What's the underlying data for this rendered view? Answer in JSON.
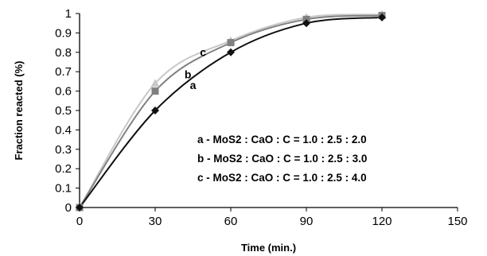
{
  "chart_data": {
    "type": "line",
    "xlabel": "Time (min.)",
    "ylabel": "Fraction reacted (%)",
    "xlim": [
      0,
      150
    ],
    "ylim": [
      0,
      1
    ],
    "x_ticks": [
      "0",
      "30",
      "60",
      "90",
      "120",
      "150"
    ],
    "y_ticks": [
      "0",
      "0.1",
      "0.2",
      "0.3",
      "0.4",
      "0.5",
      "0.6",
      "0.7",
      "0.8",
      "0.9",
      "1"
    ],
    "grid": false,
    "series": [
      {
        "name": "a",
        "legend": "a - MoS2 : CaO : C = 1.0 : 2.5 : 2.0",
        "marker": "diamond",
        "color": "#111111",
        "x": [
          0,
          30,
          60,
          90,
          120
        ],
        "y": [
          0,
          0.5,
          0.8,
          0.95,
          0.98
        ]
      },
      {
        "name": "b",
        "legend": "b - MoS2 : CaO : C = 1.0 : 2.5 : 3.0",
        "marker": "square",
        "color": "#808080",
        "x": [
          0,
          30,
          60,
          90,
          120
        ],
        "y": [
          0,
          0.6,
          0.85,
          0.97,
          0.99
        ]
      },
      {
        "name": "c",
        "legend": "c - MoS2 : CaO : C = 1.0 : 2.5 : 4.0",
        "marker": "triangle",
        "color": "#c8c8c8",
        "x": [
          0,
          30,
          60,
          90,
          120
        ],
        "y": [
          0,
          0.64,
          0.86,
          0.98,
          0.995
        ]
      }
    ]
  }
}
